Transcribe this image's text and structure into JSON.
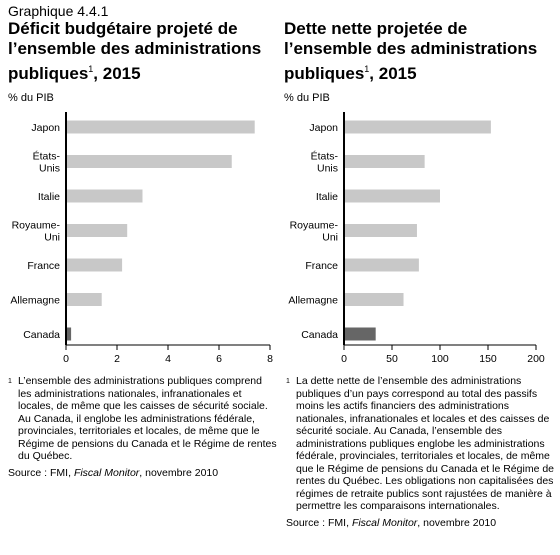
{
  "heading": "Graphique 4.4.1",
  "footnote_mark": "1",
  "charts": {
    "left": {
      "title_line1": "Déficit budgétaire projeté de",
      "title_line2": "l’ensemble des administrations",
      "title_line3a": "publiques",
      "title_line3b": ", 2015",
      "unit": "% du PIB",
      "footnote": "L’ensemble des administrations publiques comprend les administrations nationales, infranationales et locales, de même que les caisses de sécurité sociale. Au Canada, il englobe les administrations fédérale, provinciales, territoriales et locales, de même que le Régime de pensions du Canada et le Régime de rentes du Québec.",
      "source_prefix": "Source : FMI, ",
      "source_italic": "Fiscal Monitor",
      "source_suffix": ", novembre 2010"
    },
    "right": {
      "title_line1": "Dette nette projetée de",
      "title_line2": "l’ensemble des administrations",
      "title_line3a": "publiques",
      "title_line3b": ", 2015",
      "unit": "% du PIB",
      "footnote": "La dette nette de l’ensemble des administrations publiques d’un pays correspond au total des passifs moins les actifs financiers des administrations nationales, infranationales et locales et des caisses de sécurité sociale. Au Canada, l’ensemble des administrations publiques englobe les administrations fédérale, provinciales, territoriales et locales, de même que le Régime de pensions du Canada et le Régime de rentes du Québec. Les obligations non capitalisées des régimes de retraite publics sont rajustées de manière à permettre les comparaisons internationales.",
      "source_prefix": "Source : FMI, ",
      "source_italic": "Fiscal Monitor",
      "source_suffix": ", novembre 2010"
    }
  },
  "chart_data": [
    {
      "type": "bar",
      "orientation": "horizontal",
      "categories": [
        [
          "Japon"
        ],
        [
          "États-",
          "Unis"
        ],
        [
          "Italie"
        ],
        [
          "Royaume-",
          "Uni"
        ],
        [
          "France"
        ],
        [
          "Allemagne"
        ],
        [
          "Canada"
        ]
      ],
      "values": [
        7.4,
        6.5,
        3.0,
        2.4,
        2.2,
        1.4,
        0.2
      ],
      "highlight": "Canada",
      "xlim": [
        0,
        8
      ],
      "xticks": [
        0,
        2,
        4,
        6,
        8
      ],
      "grid": false,
      "colors": {
        "bar": "#c8c8c8",
        "highlight": "#666666",
        "axis": "#000000"
      }
    },
    {
      "type": "bar",
      "orientation": "horizontal",
      "categories": [
        [
          "Japon"
        ],
        [
          "États-",
          "Unis"
        ],
        [
          "Italie"
        ],
        [
          "Royaume-",
          "Uni"
        ],
        [
          "France"
        ],
        [
          "Allemagne"
        ],
        [
          "Canada"
        ]
      ],
      "values": [
        153,
        84,
        100,
        76,
        78,
        62,
        33
      ],
      "highlight": "Canada",
      "xlim": [
        0,
        200
      ],
      "xticks": [
        0,
        50,
        100,
        150,
        200
      ],
      "grid": false,
      "colors": {
        "bar": "#c8c8c8",
        "highlight": "#666666",
        "axis": "#000000"
      }
    }
  ]
}
